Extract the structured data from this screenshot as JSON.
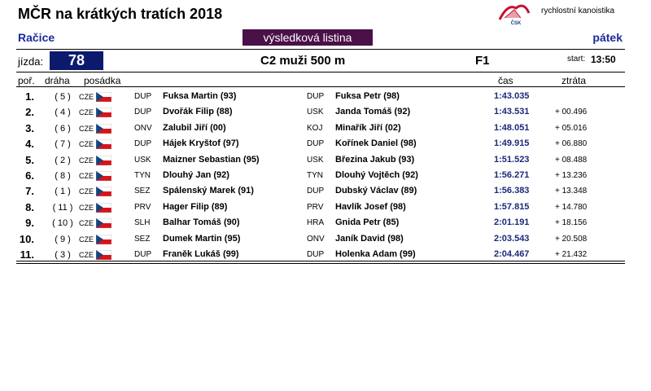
{
  "header": {
    "title": "MČR na krátkých tratích 2018",
    "logo_text": "ČSK",
    "organization": "rychlostní kanoistika",
    "location": "Račice",
    "document_type": "výsledková listina",
    "day": "pátek"
  },
  "race": {
    "label": "jízda:",
    "number": "78",
    "name": "C2 muži 500 m",
    "round": "F1",
    "start_label": "start:",
    "start_time": "13:50"
  },
  "columns": {
    "rank": "poř.",
    "lane": "dráha",
    "crew": "posádka",
    "time": "čas",
    "loss": "ztráta"
  },
  "rows": [
    {
      "rank": "1.",
      "lane": "( 5 )",
      "country": "CZE",
      "club1": "DUP",
      "crew1": "Fuksa Martin (93)",
      "club2": "DUP",
      "crew2": "Fuksa Petr (98)",
      "time": "1:43.035"
    },
    {
      "rank": "2.",
      "lane": "( 4 )",
      "country": "CZE",
      "club1": "DUP",
      "crew1": "Dvořák Filip (88)",
      "club2": "USK",
      "crew2": "Janda Tomáš (92)",
      "time": "1:43.531",
      "loss": "+ 00.496"
    },
    {
      "rank": "3.",
      "lane": "( 6 )",
      "country": "CZE",
      "club1": "ONV",
      "crew1": "Zalubil Jiří (00)",
      "club2": "KOJ",
      "crew2": "Minařík Jiří (02)",
      "time": "1:48.051",
      "loss": "+ 05.016"
    },
    {
      "rank": "4.",
      "lane": "( 7 )",
      "country": "CZE",
      "club1": "DUP",
      "crew1": "Hájek Kryštof (97)",
      "club2": "DUP",
      "crew2": "Kořínek Daniel (98)",
      "time": "1:49.915",
      "loss": "+ 06.880"
    },
    {
      "rank": "5.",
      "lane": "( 2 )",
      "country": "CZE",
      "club1": "USK",
      "crew1": "Maizner Sebastian (95)",
      "club2": "USK",
      "crew2": "Březina Jakub (93)",
      "time": "1:51.523",
      "loss": "+ 08.488"
    },
    {
      "rank": "6.",
      "lane": "( 8 )",
      "country": "CZE",
      "club1": "TYN",
      "crew1": "Dlouhý Jan (92)",
      "club2": "TYN",
      "crew2": "Dlouhý Vojtěch (92)",
      "time": "1:56.271",
      "loss": "+ 13.236"
    },
    {
      "rank": "7.",
      "lane": "( 1 )",
      "country": "CZE",
      "club1": "SEZ",
      "crew1": "Spálenský Marek (91)",
      "club2": "DUP",
      "crew2": "Dubský Václav (89)",
      "time": "1:56.383",
      "loss": "+ 13.348"
    },
    {
      "rank": "8.",
      "lane": "( 11 )",
      "country": "CZE",
      "club1": "PRV",
      "crew1": "Hager Filip (89)",
      "club2": "PRV",
      "crew2": "Havlík Josef (98)",
      "time": "1:57.815",
      "loss": "+ 14.780"
    },
    {
      "rank": "9.",
      "lane": "( 10 )",
      "country": "CZE",
      "club1": "SLH",
      "crew1": "Balhar Tomáš (90)",
      "club2": "HRA",
      "crew2": "Gnida Petr (85)",
      "time": "2:01.191",
      "loss": "+ 18.156"
    },
    {
      "rank": "10.",
      "lane": "( 9 )",
      "country": "CZE",
      "club1": "SEZ",
      "crew1": "Dumek Martin (95)",
      "club2": "ONV",
      "crew2": "Janík David (98)",
      "time": "2:03.543",
      "loss": "+ 20.508"
    },
    {
      "rank": "11.",
      "lane": "( 3 )",
      "country": "CZE",
      "club1": "DUP",
      "crew1": "Franěk Lukáš (99)",
      "club2": "DUP",
      "crew2": "Holenka Adam (99)",
      "time": "2:04.467",
      "loss": "+ 21.432"
    }
  ]
}
